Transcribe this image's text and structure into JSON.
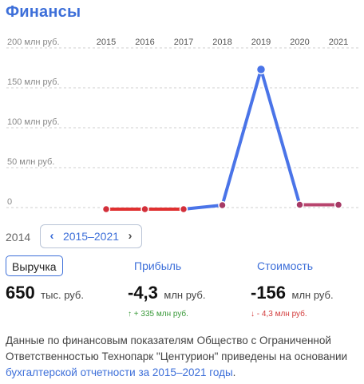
{
  "title": "Финансы",
  "colors": {
    "accent": "#3d6fd9",
    "negative": "#e03030",
    "positive": "#4a74e8"
  },
  "chart_data": {
    "type": "line",
    "x": [
      "2015",
      "2016",
      "2017",
      "2018",
      "2019",
      "2020",
      "2021"
    ],
    "ytick_labels": [
      "200 млн руб.",
      "150 млн руб.",
      "100 млн руб.",
      "50 млн руб.",
      "0"
    ],
    "ylim": [
      0,
      200
    ],
    "grid": true,
    "series": [
      {
        "values": [
          -2,
          -2,
          -2,
          3,
          173,
          3.5,
          3.5
        ]
      }
    ]
  },
  "period": {
    "prev_year": "2014",
    "range_label": "2015–2021",
    "prev_icon": "chevron-left-icon",
    "next_icon": "chevron-right-icon"
  },
  "metrics": [
    {
      "label": "Выручка",
      "value": "650",
      "unit": "тыс. руб.",
      "delta": ""
    },
    {
      "label": "Прибыль",
      "value": "-4,3",
      "unit": "млн руб.",
      "delta": "↑ + 335 млн руб."
    },
    {
      "label": "Стоимость",
      "value": "-156",
      "unit": "млн руб.",
      "delta": "↓ - 4,3 млн руб."
    }
  ],
  "footer": {
    "text": "Данные по финансовым показателям Общество с Ограниченной Ответственностью Технопарк \"Центурион\" приведены на основании ",
    "link": "бухгалтерской отчетности за 2015–2021 годы",
    "end": "."
  }
}
